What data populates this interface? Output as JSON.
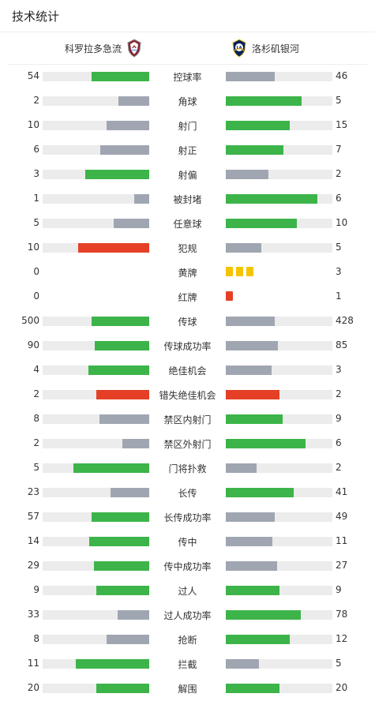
{
  "title": "技术统计",
  "home": {
    "name": "科罗拉多急流",
    "logo_icon": "colorado-rapids-logo"
  },
  "away": {
    "name": "洛杉矶银河",
    "logo_icon": "la-galaxy-logo"
  },
  "colors": {
    "win": "#3cb449",
    "lose": "#a0a6b1",
    "foul": "#e54026",
    "yellow": "#f5c400",
    "red": "#e54026",
    "track": "#ececec"
  },
  "stats": [
    {
      "label": "控球率",
      "home": "54",
      "away": "46",
      "home_fill": 0.54,
      "away_fill": 0.46,
      "home_color": "win",
      "away_color": "lose"
    },
    {
      "label": "角球",
      "home": "2",
      "away": "5",
      "home_fill": 0.29,
      "away_fill": 0.71,
      "home_color": "lose",
      "away_color": "win"
    },
    {
      "label": "射门",
      "home": "10",
      "away": "15",
      "home_fill": 0.4,
      "away_fill": 0.6,
      "home_color": "lose",
      "away_color": "win"
    },
    {
      "label": "射正",
      "home": "6",
      "away": "7",
      "home_fill": 0.46,
      "away_fill": 0.54,
      "home_color": "lose",
      "away_color": "win"
    },
    {
      "label": "射偏",
      "home": "3",
      "away": "2",
      "home_fill": 0.6,
      "away_fill": 0.4,
      "home_color": "win",
      "away_color": "lose"
    },
    {
      "label": "被封堵",
      "home": "1",
      "away": "6",
      "home_fill": 0.14,
      "away_fill": 0.86,
      "home_color": "lose",
      "away_color": "win"
    },
    {
      "label": "任意球",
      "home": "5",
      "away": "10",
      "home_fill": 0.33,
      "away_fill": 0.67,
      "home_color": "lose",
      "away_color": "win"
    },
    {
      "label": "犯规",
      "home": "10",
      "away": "5",
      "home_fill": 0.67,
      "away_fill": 0.33,
      "home_color": "foul",
      "away_color": "lose"
    },
    {
      "label": "黄牌",
      "home": "0",
      "away": "3",
      "cards": "yellow",
      "home_cards": 0,
      "away_cards": 3
    },
    {
      "label": "红牌",
      "home": "0",
      "away": "1",
      "cards": "red",
      "home_cards": 0,
      "away_cards": 1
    },
    {
      "label": "传球",
      "home": "500",
      "away": "428",
      "home_fill": 0.54,
      "away_fill": 0.46,
      "home_color": "win",
      "away_color": "lose"
    },
    {
      "label": "传球成功率",
      "home": "90",
      "away": "85",
      "home_fill": 0.51,
      "away_fill": 0.49,
      "home_color": "win",
      "away_color": "lose"
    },
    {
      "label": "绝佳机会",
      "home": "4",
      "away": "3",
      "home_fill": 0.57,
      "away_fill": 0.43,
      "home_color": "win",
      "away_color": "lose"
    },
    {
      "label": "错失绝佳机会",
      "home": "2",
      "away": "2",
      "home_fill": 0.5,
      "away_fill": 0.5,
      "home_color": "foul",
      "away_color": "foul"
    },
    {
      "label": "禁区内射门",
      "home": "8",
      "away": "9",
      "home_fill": 0.47,
      "away_fill": 0.53,
      "home_color": "lose",
      "away_color": "win"
    },
    {
      "label": "禁区外射门",
      "home": "2",
      "away": "6",
      "home_fill": 0.25,
      "away_fill": 0.75,
      "home_color": "lose",
      "away_color": "win"
    },
    {
      "label": "门将扑救",
      "home": "5",
      "away": "2",
      "home_fill": 0.71,
      "away_fill": 0.29,
      "home_color": "win",
      "away_color": "lose"
    },
    {
      "label": "长传",
      "home": "23",
      "away": "41",
      "home_fill": 0.36,
      "away_fill": 0.64,
      "home_color": "lose",
      "away_color": "win"
    },
    {
      "label": "长传成功率",
      "home": "57",
      "away": "49",
      "home_fill": 0.54,
      "away_fill": 0.46,
      "home_color": "win",
      "away_color": "lose"
    },
    {
      "label": "传中",
      "home": "14",
      "away": "11",
      "home_fill": 0.56,
      "away_fill": 0.44,
      "home_color": "win",
      "away_color": "lose"
    },
    {
      "label": "传中成功率",
      "home": "29",
      "away": "27",
      "home_fill": 0.52,
      "away_fill": 0.48,
      "home_color": "win",
      "away_color": "lose"
    },
    {
      "label": "过人",
      "home": "9",
      "away": "9",
      "home_fill": 0.5,
      "away_fill": 0.5,
      "home_color": "win",
      "away_color": "win"
    },
    {
      "label": "过人成功率",
      "home": "33",
      "away": "78",
      "home_fill": 0.3,
      "away_fill": 0.7,
      "home_color": "lose",
      "away_color": "win"
    },
    {
      "label": "抢断",
      "home": "8",
      "away": "12",
      "home_fill": 0.4,
      "away_fill": 0.6,
      "home_color": "lose",
      "away_color": "win"
    },
    {
      "label": "拦截",
      "home": "11",
      "away": "5",
      "home_fill": 0.69,
      "away_fill": 0.31,
      "home_color": "win",
      "away_color": "lose"
    },
    {
      "label": "解围",
      "home": "20",
      "away": "20",
      "home_fill": 0.5,
      "away_fill": 0.5,
      "home_color": "win",
      "away_color": "win"
    }
  ]
}
